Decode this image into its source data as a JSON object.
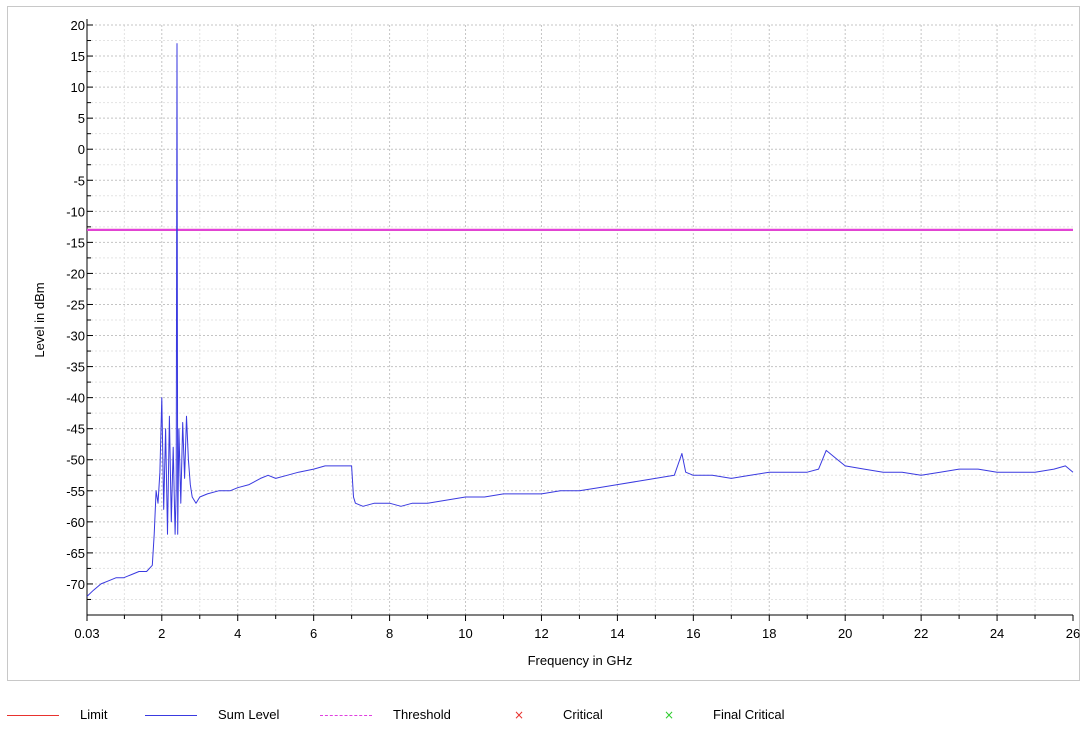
{
  "chart_data": {
    "type": "line",
    "title": "",
    "xlabel": "Frequency in GHz",
    "ylabel": "Level in dBm",
    "xlim": [
      0.03,
      26
    ],
    "ylim": [
      -75,
      20
    ],
    "x_tick_labels": [
      "0.03",
      "2",
      "4",
      "6",
      "8",
      "10",
      "12",
      "14",
      "16",
      "18",
      "20",
      "22",
      "24",
      "26"
    ],
    "x_tick_values": [
      0.03,
      2,
      4,
      6,
      8,
      10,
      12,
      14,
      16,
      18,
      20,
      22,
      24,
      26
    ],
    "y_ticks": [
      20,
      15,
      10,
      5,
      0,
      -5,
      -10,
      -15,
      -20,
      -25,
      -30,
      -35,
      -40,
      -45,
      -50,
      -55,
      -60,
      -65,
      -70
    ],
    "grid": true,
    "legend_position": "bottom",
    "colors": {
      "limit": "#e8322e",
      "sum_level": "#3a3ae0",
      "threshold": "#e040e0",
      "critical": "#e8322e",
      "final_critical": "#2ecc2e"
    },
    "series": [
      {
        "name": "Sum Level",
        "x": [
          0.03,
          0.2,
          0.4,
          0.6,
          0.8,
          1.0,
          1.2,
          1.4,
          1.6,
          1.75,
          1.8,
          1.85,
          1.9,
          1.95,
          2.0,
          2.05,
          2.1,
          2.15,
          2.2,
          2.25,
          2.3,
          2.35,
          2.38,
          2.4,
          2.42,
          2.45,
          2.5,
          2.55,
          2.6,
          2.65,
          2.7,
          2.75,
          2.8,
          2.9,
          3.0,
          3.2,
          3.5,
          3.8,
          4.0,
          4.3,
          4.6,
          4.8,
          5.0,
          5.3,
          5.6,
          6.0,
          6.3,
          6.6,
          6.9,
          7.0,
          7.05,
          7.1,
          7.3,
          7.6,
          8.0,
          8.3,
          8.6,
          9.0,
          9.5,
          10.0,
          10.5,
          11.0,
          11.5,
          12.0,
          12.5,
          13.0,
          13.5,
          14.0,
          14.5,
          15.0,
          15.5,
          15.7,
          15.8,
          16.0,
          16.5,
          17.0,
          17.5,
          18.0,
          18.5,
          19.0,
          19.3,
          19.5,
          19.8,
          20.0,
          20.5,
          21.0,
          21.5,
          22.0,
          22.5,
          23.0,
          23.5,
          24.0,
          24.5,
          25.0,
          25.5,
          25.8,
          26.0
        ],
        "values": [
          -72,
          -71,
          -70,
          -69.5,
          -69,
          -69,
          -68.5,
          -68,
          -68,
          -67,
          -62,
          -55,
          -57,
          -52,
          -40,
          -58,
          -45,
          -62,
          -43,
          -60,
          -48,
          -62,
          -55,
          17,
          -62,
          -45,
          -57,
          -44,
          -53,
          -43,
          -50,
          -54,
          -56,
          -57,
          -56,
          -55.5,
          -55,
          -55,
          -54.5,
          -54,
          -53,
          -52.5,
          -53,
          -52.5,
          -52,
          -51.5,
          -51,
          -51,
          -51,
          -51,
          -56,
          -57,
          -57.5,
          -57,
          -57,
          -57.5,
          -57,
          -57,
          -56.5,
          -56,
          -56,
          -55.5,
          -55.5,
          -55.5,
          -55,
          -55,
          -54.5,
          -54,
          -53.5,
          -53,
          -52.5,
          -49,
          -52,
          -52.5,
          -52.5,
          -53,
          -52.5,
          -52,
          -52,
          -52,
          -51.5,
          -48.5,
          -50,
          -51,
          -51.5,
          -52,
          -52,
          -52.5,
          -52,
          -51.5,
          -51.5,
          -52,
          -52,
          -52,
          -51.5,
          -51,
          -52
        ]
      },
      {
        "name": "Limit",
        "x": [
          0.03,
          26
        ],
        "values": [
          -13,
          -13
        ]
      },
      {
        "name": "Threshold",
        "x": [
          0.03,
          26
        ],
        "values": [
          -13,
          -13
        ]
      }
    ]
  },
  "legend": {
    "items": [
      {
        "label": "Limit",
        "swatch": "line",
        "color": "#e8322e"
      },
      {
        "label": "Sum Level",
        "swatch": "line",
        "color": "#3a3ae0"
      },
      {
        "label": "Threshold",
        "swatch": "dashdot",
        "color": "#e040e0"
      },
      {
        "label": "Critical",
        "swatch": "x",
        "color": "#e8322e"
      },
      {
        "label": "Final Critical",
        "swatch": "x",
        "color": "#2ecc2e"
      }
    ]
  }
}
